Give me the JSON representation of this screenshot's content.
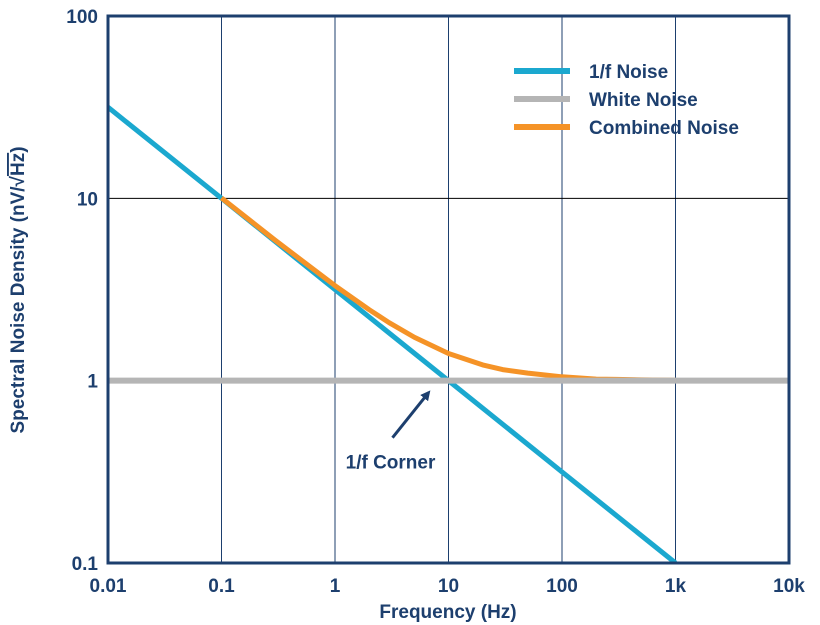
{
  "chart_data": {
    "type": "line",
    "x_scale": "log",
    "y_scale": "log",
    "xlim": [
      0.01,
      10000
    ],
    "ylim": [
      0.1,
      100
    ],
    "xlabel": "Frequency (Hz)",
    "ylabel": "Spectral Noise Density (nV/√Hz)",
    "ylabel_main": "Spectral Noise Density (nV/",
    "ylabel_radical": "√",
    "ylabel_radicand": "Hz",
    "ylabel_close": ")",
    "x_ticks": [
      {
        "value": 0.01,
        "label": "0.01"
      },
      {
        "value": 0.1,
        "label": "0.1"
      },
      {
        "value": 1,
        "label": "1"
      },
      {
        "value": 10,
        "label": "10"
      },
      {
        "value": 100,
        "label": "100"
      },
      {
        "value": 1000,
        "label": "1k"
      },
      {
        "value": 10000,
        "label": "10k"
      }
    ],
    "y_ticks": [
      {
        "value": 0.1,
        "label": "0.1"
      },
      {
        "value": 1,
        "label": "1"
      },
      {
        "value": 10,
        "label": "10"
      },
      {
        "value": 100,
        "label": "100"
      }
    ],
    "grid": "major, both axes",
    "legend_placement": "top-right",
    "series": [
      {
        "name": "1/f Noise",
        "color": "#1ba8cf",
        "x": [
          0.01,
          0.1,
          1,
          10,
          100,
          1000
        ],
        "y": [
          31.6,
          10,
          3.16,
          1,
          0.316,
          0.1
        ]
      },
      {
        "name": "White Noise",
        "color": "#b5b5b5",
        "x": [
          0.01,
          10000
        ],
        "y": [
          1,
          1
        ]
      },
      {
        "name": "Combined Noise",
        "color": "#f59327",
        "x": [
          0.1,
          0.3,
          1,
          2,
          3,
          5,
          10,
          20,
          30,
          50,
          100,
          200,
          300,
          500,
          1000
        ],
        "y": [
          10.05,
          5.86,
          3.32,
          2.45,
          2.08,
          1.73,
          1.41,
          1.22,
          1.15,
          1.1,
          1.05,
          1.02,
          1.016,
          1.01,
          1.005
        ]
      }
    ],
    "annotations": [
      {
        "text": "1/f Corner",
        "points_to": {
          "x": 10,
          "y": 1
        }
      }
    ]
  }
}
